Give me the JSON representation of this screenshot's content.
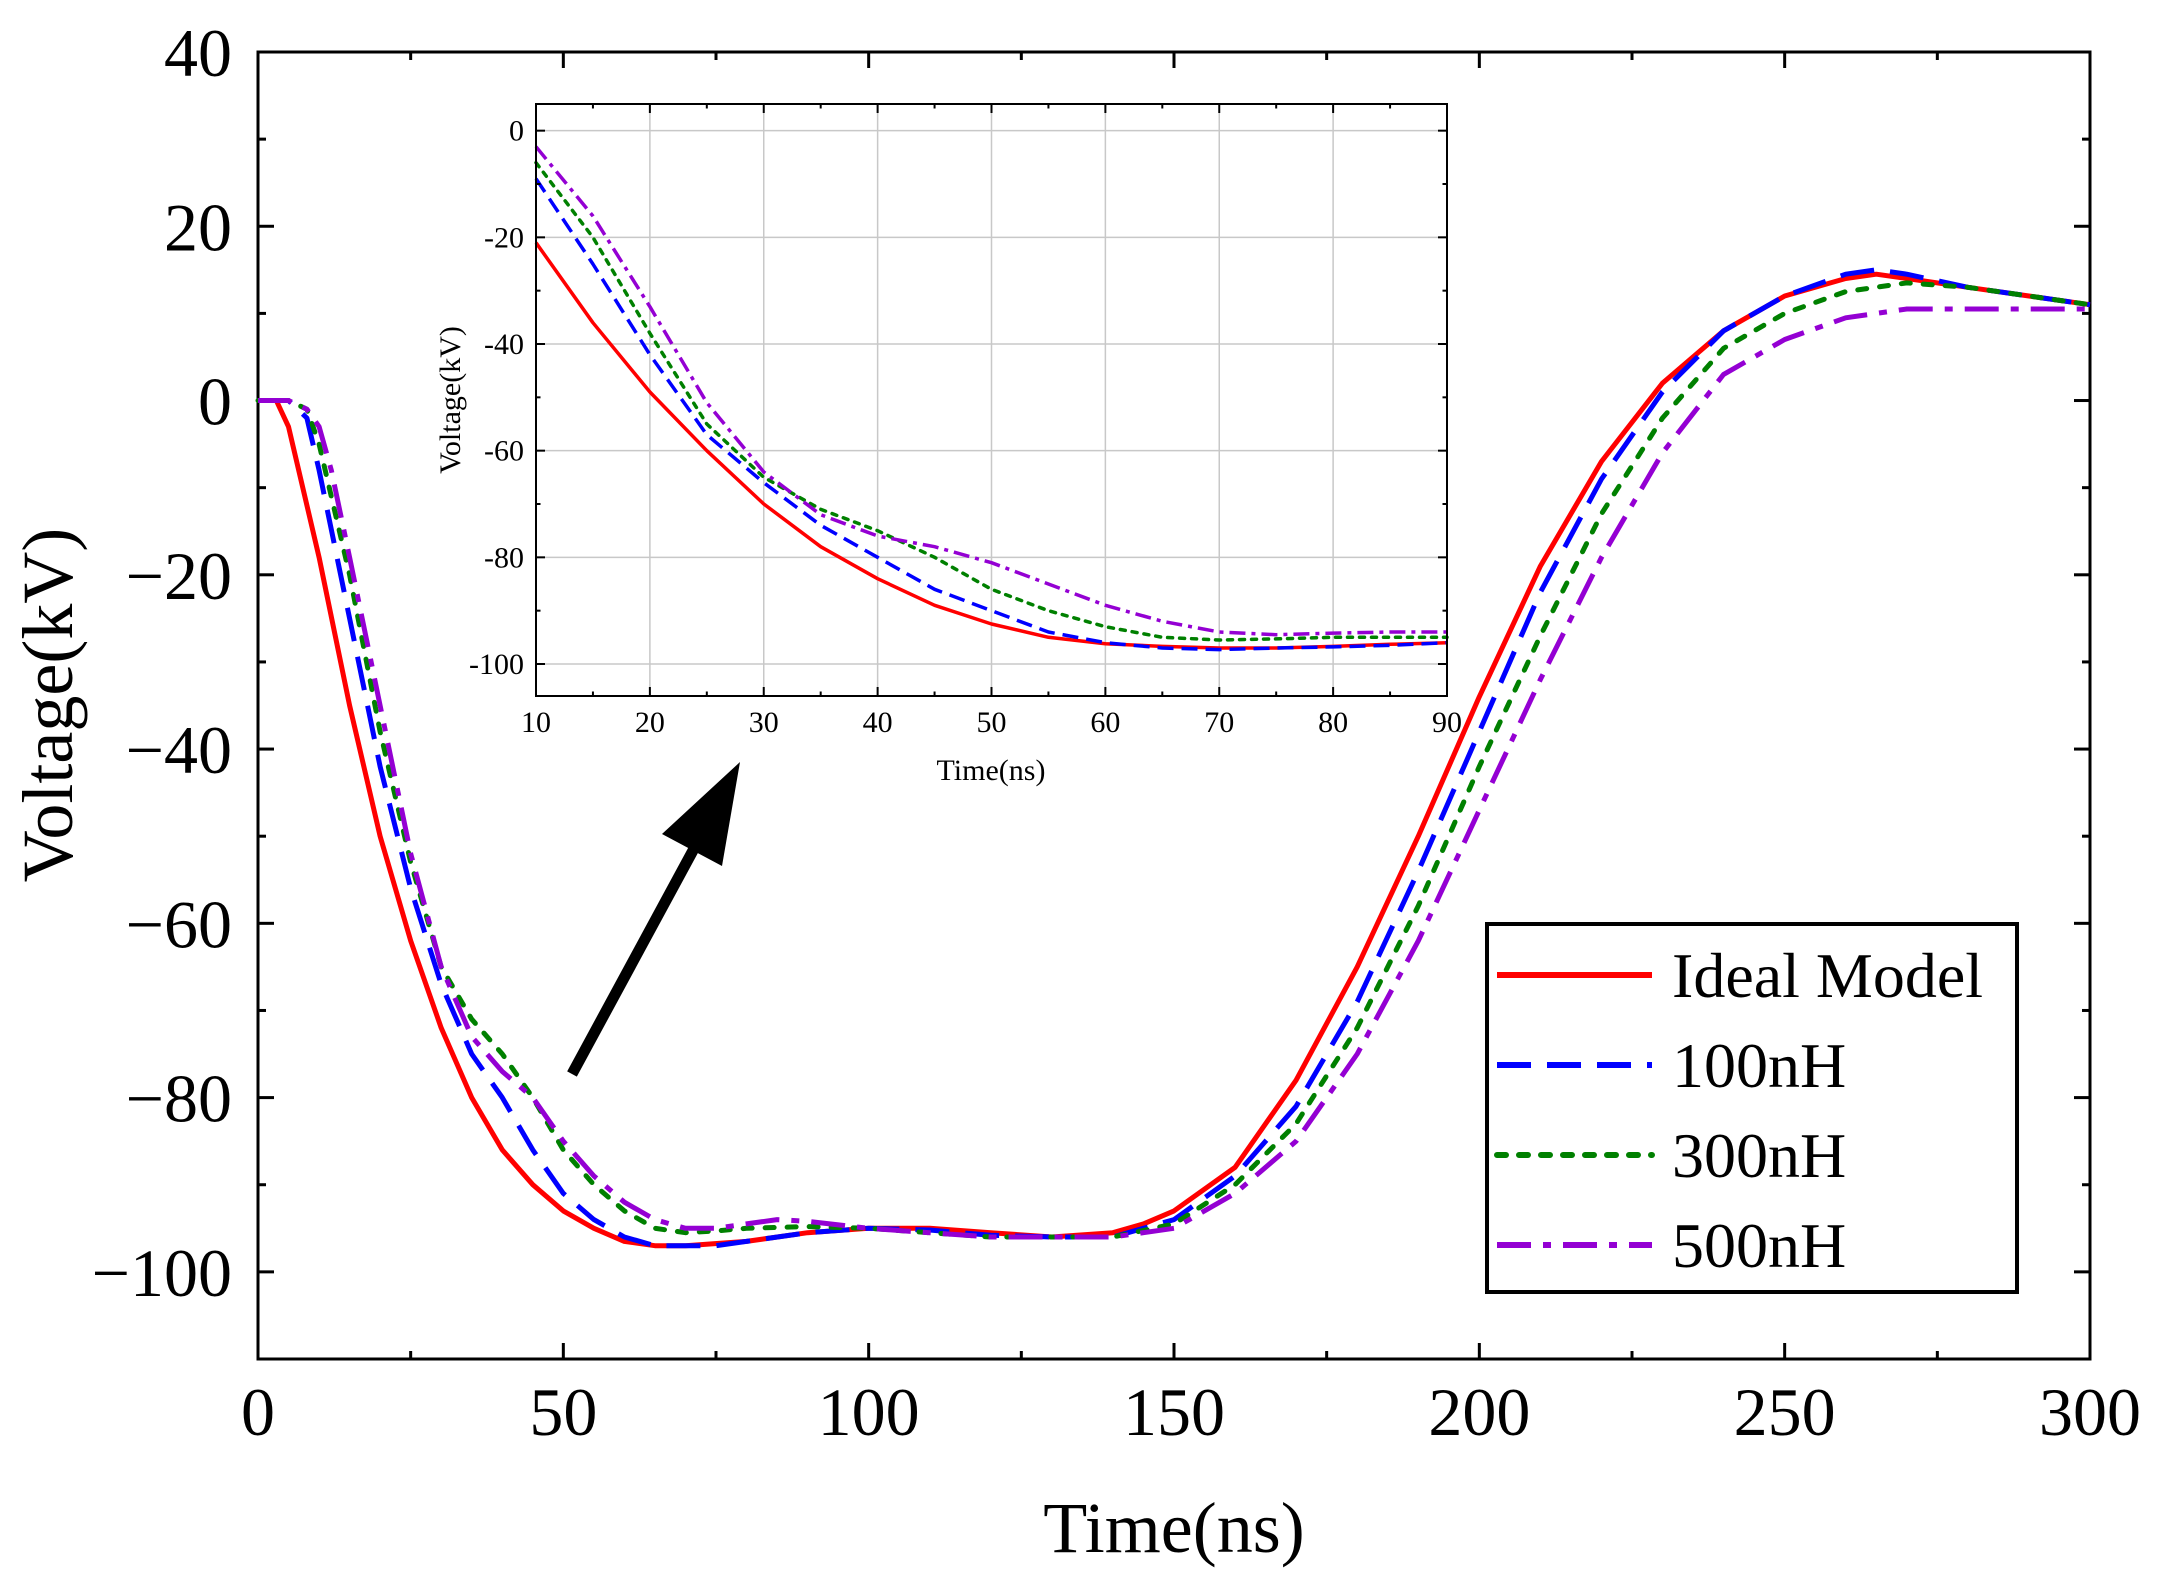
{
  "chart_data": [
    {
      "type": "line",
      "title": "",
      "xlabel": "Time(ns)",
      "ylabel": "Voltage(kV)",
      "xlim": [
        0,
        300
      ],
      "ylim": [
        -110,
        40
      ],
      "xticks": [
        0,
        50,
        100,
        150,
        200,
        250,
        300
      ],
      "yticks": [
        40,
        20,
        0,
        -20,
        -40,
        -60,
        -80,
        -100
      ],
      "ytick_labels": [
        "40",
        "20",
        "0",
        "−20",
        "−40",
        "−60",
        "−80",
        "−100"
      ],
      "grid": false,
      "legend": "bottom-right",
      "series": [
        {
          "name": "Ideal Model",
          "color": "#ff0000",
          "style": "solid",
          "x": [
            0,
            3,
            5,
            10,
            15,
            20,
            25,
            30,
            35,
            40,
            45,
            50,
            55,
            60,
            65,
            70,
            80,
            90,
            100,
            110,
            120,
            130,
            140,
            145,
            150,
            160,
            170,
            180,
            190,
            200,
            210,
            220,
            230,
            240,
            250,
            260,
            265,
            270,
            280,
            290,
            300
          ],
          "y": [
            0,
            0,
            -3,
            -18,
            -35,
            -50,
            -62,
            -72,
            -80,
            -86,
            -90,
            -93,
            -95,
            -96.5,
            -97,
            -97,
            -96.5,
            -95.5,
            -95,
            -95,
            -95.5,
            -96,
            -95.5,
            -94.5,
            -93,
            -88,
            -78,
            -65,
            -50,
            -34,
            -19,
            -7,
            2,
            8,
            12,
            14,
            14.5,
            14,
            13,
            12,
            11
          ]
        },
        {
          "name": "100nH",
          "color": "#0000ff",
          "style": "dashed",
          "x": [
            0,
            5,
            8,
            10,
            15,
            20,
            25,
            30,
            35,
            40,
            45,
            50,
            55,
            60,
            65,
            70,
            75,
            80,
            90,
            100,
            110,
            120,
            130,
            140,
            150,
            160,
            170,
            180,
            190,
            200,
            210,
            220,
            230,
            240,
            250,
            260,
            265,
            270,
            280,
            290,
            300
          ],
          "y": [
            0,
            0,
            -2,
            -8,
            -25,
            -42,
            -56,
            -67,
            -75,
            -80,
            -86,
            -91,
            -94,
            -96,
            -97,
            -97,
            -97,
            -96.5,
            -95.5,
            -95,
            -95.2,
            -95.8,
            -96,
            -96,
            -94,
            -89,
            -81,
            -69,
            -54,
            -38,
            -22,
            -9,
            1,
            8,
            12,
            14.5,
            15,
            14.5,
            13,
            12,
            11
          ]
        },
        {
          "name": "300nH",
          "color": "#008000",
          "style": "dotted",
          "x": [
            0,
            5,
            8,
            10,
            15,
            20,
            25,
            30,
            35,
            40,
            45,
            50,
            55,
            60,
            65,
            70,
            75,
            80,
            90,
            100,
            110,
            120,
            130,
            140,
            150,
            160,
            170,
            180,
            190,
            200,
            210,
            220,
            230,
            240,
            250,
            260,
            270,
            280,
            290,
            300
          ],
          "y": [
            0,
            0,
            -1,
            -5,
            -20,
            -38,
            -53,
            -65,
            -71,
            -75,
            -80,
            -86,
            -90,
            -93,
            -95,
            -95.5,
            -95.3,
            -95,
            -94.8,
            -95,
            -95.5,
            -96,
            -96,
            -96,
            -94.5,
            -90,
            -83,
            -72,
            -58,
            -42,
            -27,
            -13,
            -2,
            6,
            10,
            12.5,
            13.5,
            13,
            12,
            11
          ]
        },
        {
          "name": "500nH",
          "color": "#9400d3",
          "style": "dashdot",
          "x": [
            0,
            5,
            8,
            10,
            12,
            15,
            20,
            25,
            30,
            35,
            40,
            45,
            50,
            55,
            60,
            65,
            70,
            75,
            80,
            85,
            90,
            100,
            110,
            120,
            130,
            140,
            150,
            160,
            170,
            180,
            190,
            200,
            210,
            220,
            230,
            240,
            250,
            260,
            270,
            280,
            290,
            300
          ],
          "y": [
            0,
            0,
            -1,
            -3,
            -8,
            -18,
            -35,
            -52,
            -65,
            -73,
            -77,
            -80,
            -85,
            -89,
            -92,
            -94,
            -95,
            -95,
            -94.5,
            -94,
            -94.2,
            -95,
            -95.5,
            -96,
            -96,
            -96,
            -95,
            -91,
            -85,
            -75,
            -62,
            -47,
            -32,
            -18,
            -6,
            3,
            7,
            9.5,
            10.5,
            10.5,
            10.5,
            10.5
          ]
        }
      ]
    },
    {
      "type": "line",
      "title": "",
      "role": "inset",
      "xlabel": "Time(ns)",
      "ylabel": "Voltage(kV)",
      "xlim": [
        10,
        90
      ],
      "ylim": [
        -106,
        5
      ],
      "xticks": [
        10,
        20,
        30,
        40,
        50,
        60,
        70,
        80,
        90
      ],
      "yticks": [
        0,
        -20,
        -40,
        -60,
        -80,
        -100
      ],
      "ytick_labels": [
        "0",
        "-20",
        "-40",
        "-60",
        "-80",
        "-100"
      ],
      "grid": true,
      "series": [
        {
          "name": "Ideal Model",
          "color": "#ff0000",
          "style": "solid",
          "x": [
            10,
            15,
            20,
            25,
            30,
            35,
            40,
            45,
            50,
            55,
            60,
            65,
            70,
            75,
            80,
            85,
            90
          ],
          "y": [
            -21,
            -36,
            -49,
            -60,
            -70,
            -78,
            -84,
            -89,
            -92.5,
            -95,
            -96.2,
            -96.7,
            -97,
            -97,
            -96.7,
            -96.3,
            -96
          ]
        },
        {
          "name": "100nH",
          "color": "#0000ff",
          "style": "dashed",
          "x": [
            10,
            15,
            20,
            25,
            30,
            35,
            40,
            45,
            50,
            55,
            60,
            65,
            70,
            75,
            80,
            85,
            90
          ],
          "y": [
            -9,
            -25,
            -42,
            -57,
            -66,
            -74,
            -80,
            -86,
            -90,
            -94,
            -96,
            -97,
            -97.3,
            -97,
            -96.8,
            -96.5,
            -96
          ]
        },
        {
          "name": "300nH",
          "color": "#008000",
          "style": "dotted",
          "x": [
            10,
            15,
            20,
            25,
            30,
            35,
            40,
            45,
            50,
            55,
            60,
            65,
            70,
            75,
            80,
            85,
            90
          ],
          "y": [
            -6,
            -20,
            -38,
            -55,
            -65,
            -71,
            -75,
            -80,
            -86,
            -90,
            -93,
            -95,
            -95.5,
            -95.3,
            -95,
            -95,
            -95
          ]
        },
        {
          "name": "500nH",
          "color": "#9400d3",
          "style": "dashdot",
          "x": [
            10,
            15,
            20,
            25,
            30,
            35,
            40,
            45,
            50,
            55,
            60,
            65,
            70,
            75,
            80,
            85,
            90
          ],
          "y": [
            -3,
            -16,
            -33,
            -51,
            -64,
            -72,
            -76,
            -78,
            -81,
            -85,
            -89,
            -92,
            -94,
            -94.5,
            -94.2,
            -94,
            -94
          ]
        }
      ]
    }
  ]
}
